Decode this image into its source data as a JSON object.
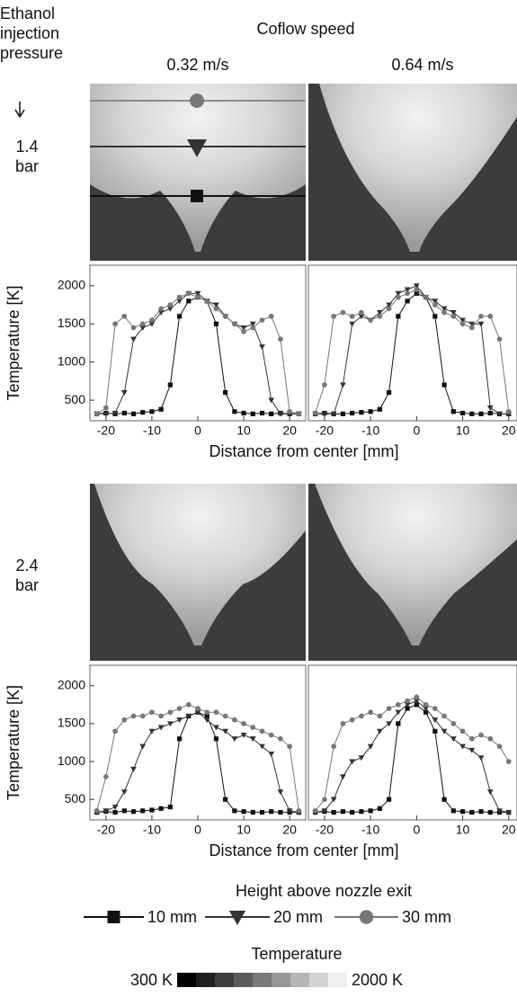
{
  "row_header": "Ethanol injection pressure",
  "column_header": "Coflow speed",
  "columns": [
    "0.32 m/s",
    "0.64 m/s"
  ],
  "rows": [
    "1.4 bar",
    "2.4 bar"
  ],
  "legend": {
    "title": "Height above nozzle exit",
    "entries": [
      {
        "name": "10 mm",
        "color": "#111111",
        "marker": "square"
      },
      {
        "name": "20 mm",
        "color": "#333333",
        "marker": "triangle-down"
      },
      {
        "name": "30 mm",
        "color": "#777777",
        "marker": "circle"
      }
    ]
  },
  "colorbar": {
    "title": "Temperature",
    "min_label": "300 K",
    "max_label": "2000 K"
  },
  "chart_data": [
    {
      "type": "line",
      "y_label": "Temperature [K]",
      "x_label": "Distance from center [mm]",
      "x": [
        -22,
        -20,
        -18,
        -16,
        -14,
        -12,
        -10,
        -8,
        -6,
        -4,
        -2,
        0,
        2,
        4,
        6,
        8,
        10,
        12,
        14,
        16,
        18,
        20,
        22
      ],
      "xlim": [
        -23.5,
        23.5
      ],
      "xticks": [
        -20,
        -10,
        0,
        10,
        20
      ],
      "ylim": [
        230,
        2270
      ],
      "yticks": [
        500,
        1000,
        1500,
        2000
      ],
      "series": [
        {
          "values": [
            320,
            330,
            320,
            330,
            320,
            340,
            350,
            380,
            700,
            1600,
            1800,
            1850,
            1800,
            1500,
            600,
            350,
            330,
            320,
            330,
            320,
            330,
            320,
            320
          ]
        },
        {
          "values": [
            320,
            320,
            330,
            600,
            1300,
            1450,
            1500,
            1650,
            1700,
            1800,
            1900,
            1900,
            1800,
            1750,
            1600,
            1500,
            1450,
            1500,
            1200,
            500,
            320,
            320,
            320
          ]
        },
        {
          "values": [
            320,
            400,
            1500,
            1600,
            1450,
            1500,
            1550,
            1700,
            1750,
            1850,
            1900,
            1850,
            1800,
            1700,
            1600,
            1500,
            1400,
            1450,
            1550,
            1600,
            1300,
            350,
            320
          ]
        }
      ]
    },
    {
      "type": "line",
      "x": [
        -22,
        -20,
        -18,
        -16,
        -14,
        -12,
        -10,
        -8,
        -6,
        -4,
        -2,
        0,
        2,
        4,
        6,
        8,
        10,
        12,
        14,
        16,
        18,
        20
      ],
      "xlim": [
        -23.5,
        21.8
      ],
      "xticks": [
        -20,
        -10,
        0,
        10,
        20
      ],
      "ylim": [
        230,
        2270
      ],
      "series": [
        {
          "values": [
            320,
            330,
            320,
            320,
            330,
            340,
            350,
            380,
            600,
            1600,
            1800,
            1900,
            1850,
            1600,
            700,
            350,
            330,
            320,
            320,
            330,
            320,
            320
          ]
        },
        {
          "values": [
            320,
            320,
            320,
            700,
            1500,
            1600,
            1550,
            1650,
            1750,
            1900,
            1950,
            2000,
            1850,
            1800,
            1700,
            1650,
            1550,
            1500,
            1500,
            400,
            320,
            320
          ]
        },
        {
          "values": [
            330,
            700,
            1600,
            1650,
            1600,
            1650,
            1550,
            1600,
            1700,
            1850,
            1900,
            1950,
            1850,
            1750,
            1650,
            1600,
            1500,
            1450,
            1600,
            1600,
            1300,
            350
          ]
        }
      ]
    },
    {
      "type": "line",
      "y_label": "Temperature [K]",
      "x_label": "Distance from center [mm]",
      "x": [
        -22,
        -20,
        -18,
        -16,
        -14,
        -12,
        -10,
        -8,
        -6,
        -4,
        -2,
        0,
        2,
        4,
        6,
        8,
        10,
        12,
        14,
        16,
        18,
        20,
        22
      ],
      "xlim": [
        -23.5,
        23.5
      ],
      "xticks": [
        -20,
        -10,
        0,
        10,
        20
      ],
      "ylim": [
        230,
        2270
      ],
      "yticks": [
        500,
        1000,
        1500,
        2000
      ],
      "series": [
        {
          "values": [
            330,
            340,
            330,
            350,
            340,
            350,
            360,
            380,
            400,
            1300,
            1600,
            1650,
            1600,
            1300,
            500,
            350,
            340,
            330,
            330,
            340,
            330,
            330,
            330
          ]
        },
        {
          "values": [
            330,
            350,
            400,
            600,
            900,
            1200,
            1400,
            1450,
            1500,
            1550,
            1600,
            1650,
            1550,
            1450,
            1400,
            1300,
            1350,
            1300,
            1200,
            1100,
            600,
            350,
            330
          ]
        },
        {
          "values": [
            350,
            800,
            1400,
            1550,
            1600,
            1600,
            1650,
            1600,
            1650,
            1700,
            1750,
            1700,
            1650,
            1650,
            1600,
            1550,
            1500,
            1450,
            1400,
            1350,
            1300,
            1200,
            350
          ]
        }
      ]
    },
    {
      "type": "line",
      "x": [
        -22,
        -20,
        -18,
        -16,
        -14,
        -12,
        -10,
        -8,
        -6,
        -4,
        -2,
        0,
        2,
        4,
        6,
        8,
        10,
        12,
        14,
        16,
        18,
        20
      ],
      "xlim": [
        -23.5,
        21.8
      ],
      "xticks": [
        -20,
        -10,
        0,
        10,
        20
      ],
      "ylim": [
        230,
        2270
      ],
      "series": [
        {
          "values": [
            330,
            340,
            330,
            340,
            330,
            340,
            350,
            380,
            500,
            1500,
            1700,
            1750,
            1650,
            1400,
            500,
            350,
            340,
            330,
            340,
            330,
            330,
            330
          ]
        },
        {
          "values": [
            330,
            350,
            500,
            800,
            1000,
            1050,
            1200,
            1400,
            1500,
            1650,
            1750,
            1800,
            1700,
            1550,
            1400,
            1300,
            1200,
            1150,
            1050,
            600,
            350,
            330
          ]
        },
        {
          "values": [
            350,
            500,
            1200,
            1500,
            1550,
            1600,
            1650,
            1600,
            1700,
            1750,
            1800,
            1850,
            1750,
            1700,
            1600,
            1500,
            1400,
            1300,
            1350,
            1300,
            1200,
            1000
          ]
        }
      ]
    }
  ]
}
